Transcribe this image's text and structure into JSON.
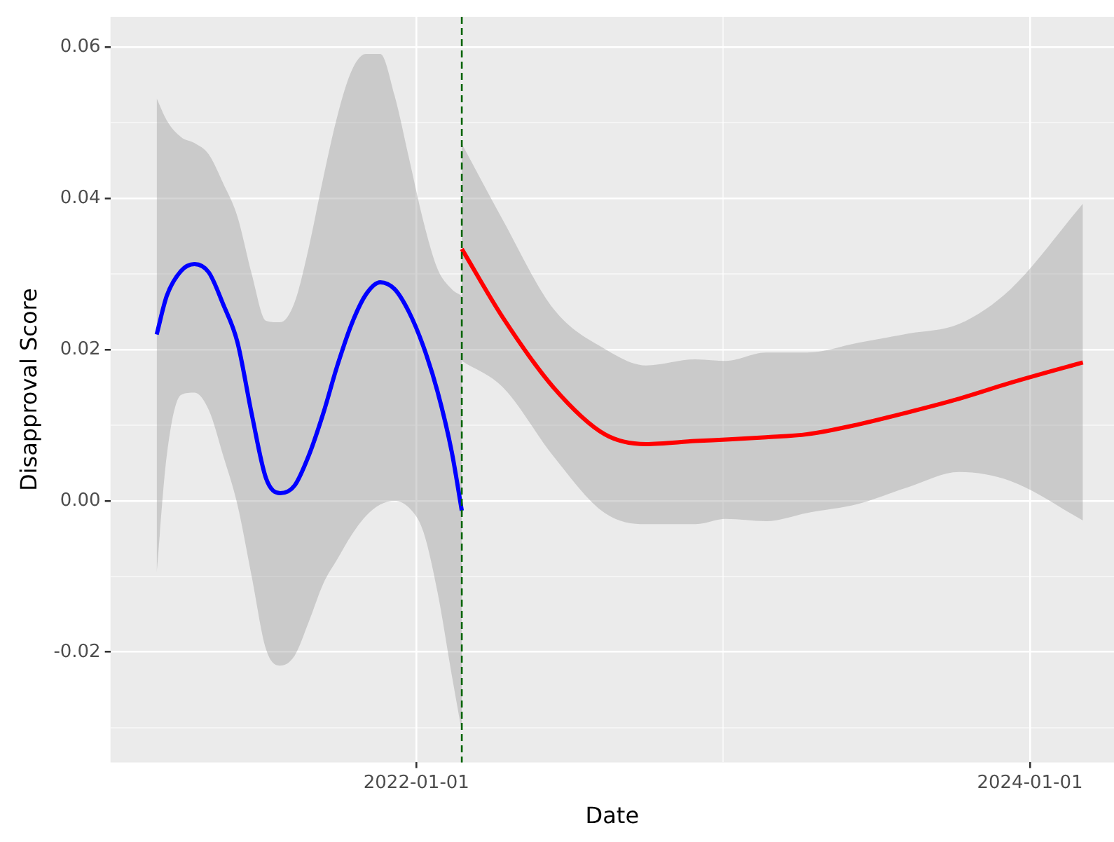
{
  "chart_data": {
    "type": "line",
    "xlabel": "Date",
    "ylabel": "Disapproval Score",
    "xlim": [
      "2021-01-02",
      "2024-04-10"
    ],
    "xticks": [
      {
        "value": "2022-01-01",
        "label": "2022-01-01"
      },
      {
        "value": "2023-01-01",
        "label": null
      },
      {
        "value": "2024-01-01",
        "label": "2024-01-01"
      }
    ],
    "ylim": [
      -0.0346,
      0.064
    ],
    "yticks": [
      {
        "value": -0.03,
        "label": null
      },
      {
        "value": -0.02,
        "label": "-0.02"
      },
      {
        "value": -0.01,
        "label": null
      },
      {
        "value": 0,
        "label": "0.00"
      },
      {
        "value": 0.01,
        "label": null
      },
      {
        "value": 0.02,
        "label": "0.02"
      },
      {
        "value": 0.03,
        "label": null
      },
      {
        "value": 0.04,
        "label": "0.04"
      },
      {
        "value": 0.05,
        "label": null
      },
      {
        "value": 0.06,
        "label": "0.06"
      }
    ],
    "grid": true,
    "legend": false,
    "ref_lines": [
      {
        "axis": "x",
        "value": "2022-02-24",
        "color": "#006400",
        "line_style": "dashed"
      }
    ],
    "series": [
      {
        "color": "#0000ff",
        "x": [
          "2021-02-26",
          "2021-03-10",
          "2021-03-27",
          "2021-04-12",
          "2021-04-29",
          "2021-05-16",
          "2021-06-02",
          "2021-06-19",
          "2021-07-06",
          "2021-07-23",
          "2021-08-09",
          "2021-08-26",
          "2021-09-12",
          "2021-09-29",
          "2021-10-16",
          "2021-11-02",
          "2021-11-19",
          "2021-12-06",
          "2021-12-23",
          "2022-01-09",
          "2022-01-26",
          "2022-02-12",
          "2022-02-24"
        ],
        "values": [
          0.022,
          0.0271,
          0.0304,
          0.0313,
          0.0302,
          0.026,
          0.021,
          0.0115,
          0.003,
          0.001,
          0.002,
          0.006,
          0.0115,
          0.0179,
          0.0234,
          0.0273,
          0.0289,
          0.028,
          0.025,
          0.0205,
          0.0145,
          0.0065,
          -0.0013
        ],
        "upper": [
          0.0532,
          0.0503,
          0.0481,
          0.0473,
          0.0458,
          0.042,
          0.0376,
          0.03,
          0.0238,
          0.0236,
          0.0262,
          0.0335,
          0.0426,
          0.0509,
          0.0569,
          0.0591,
          0.0591,
          0.0536,
          0.0454,
          0.0371,
          0.0307,
          0.028,
          0.0271
        ],
        "lower": [
          -0.0095,
          0.006,
          0.014,
          0.0143,
          0.012,
          0.006,
          -0.0005,
          -0.01,
          -0.0196,
          -0.0218,
          -0.0205,
          -0.016,
          -0.011,
          -0.0077,
          -0.0045,
          -0.002,
          -0.0005,
          0,
          -0.0009,
          -0.004,
          -0.012,
          -0.023,
          -0.0305
        ]
      },
      {
        "color": "#ff0000",
        "x": [
          "2022-02-24",
          "2022-04-14",
          "2022-06-13",
          "2022-08-13",
          "2022-10-01",
          "2022-11-29",
          "2023-01-04",
          "2023-02-21",
          "2023-04-11",
          "2023-06-11",
          "2023-08-09",
          "2023-10-09",
          "2023-12-09",
          "2024-03-04"
        ],
        "values": [
          0.0333,
          0.0242,
          0.015,
          0.0088,
          0.0075,
          0.0079,
          0.0081,
          0.0084,
          0.0088,
          0.0101,
          0.0117,
          0.0135,
          0.0156,
          0.0183
        ],
        "upper": [
          0.0472,
          0.0371,
          0.0254,
          0.0201,
          0.0179,
          0.0187,
          0.0185,
          0.0196,
          0.0196,
          0.0209,
          0.0221,
          0.0234,
          0.028,
          0.0393
        ],
        "lower": [
          0.0185,
          0.015,
          0.0059,
          -0.0016,
          -0.0031,
          -0.0031,
          -0.0024,
          -0.0027,
          -0.0016,
          -0.0004,
          0.0018,
          0.0038,
          0.0026,
          -0.0026
        ]
      }
    ]
  }
}
